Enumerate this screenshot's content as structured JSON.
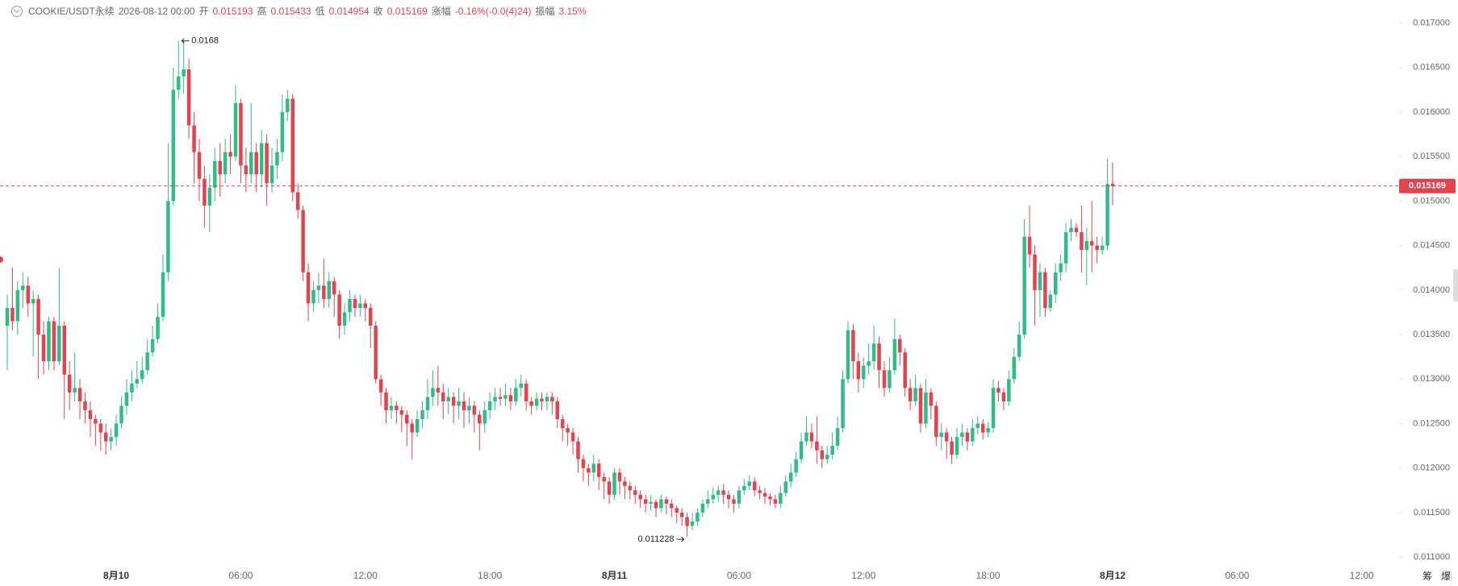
{
  "chart_data": {
    "type": "candlestick",
    "header": {
      "symbol": "COOKIE/USDT永续",
      "datetime": "2026-08-12 00:00",
      "open_label": "开",
      "high_label": "高",
      "low_label": "低",
      "close_label": "收",
      "change_label": "涨幅",
      "change": "-0.16%(-0.0(4)24)",
      "amplitude_label": "振幅",
      "amplitude": "3.15%"
    },
    "tools": [
      "筹",
      "爆"
    ],
    "up_color": "#2ebd85",
    "down_color": "#e2434f",
    "xlim": [
      -5.6,
      61.8
    ],
    "xticks": [
      {
        "value": 0,
        "label": "8月10"
      },
      {
        "value": 6,
        "label": "06:00"
      },
      {
        "value": 12,
        "label": "12:00"
      },
      {
        "value": 18,
        "label": "18:00"
      },
      {
        "value": 24,
        "label": "8月11"
      },
      {
        "value": 30,
        "label": "06:00"
      },
      {
        "value": 36,
        "label": "12:00"
      },
      {
        "value": 42,
        "label": "18:00"
      },
      {
        "value": 48,
        "label": "8月12"
      },
      {
        "value": 54,
        "label": "06:00"
      },
      {
        "value": 60,
        "label": "12:00"
      }
    ],
    "ylim": [
      0.01092,
      0.01725
    ],
    "yticks": [
      {
        "value": 0.011,
        "label": "0.011000"
      },
      {
        "value": 0.0115,
        "label": "0.011500"
      },
      {
        "value": 0.012,
        "label": "0.012000"
      },
      {
        "value": 0.0125,
        "label": "0.012500"
      },
      {
        "value": 0.013,
        "label": "0.013000"
      },
      {
        "value": 0.0135,
        "label": "0.013500"
      },
      {
        "value": 0.014,
        "label": "0.014000"
      },
      {
        "value": 0.0145,
        "label": "0.014500"
      },
      {
        "value": 0.015,
        "label": "0.015000"
      },
      {
        "value": 0.0155,
        "label": "0.015500"
      },
      {
        "value": 0.016,
        "label": "0.016000"
      },
      {
        "value": 0.0165,
        "label": "0.016500"
      },
      {
        "value": 0.017,
        "label": "0.017000"
      }
    ],
    "grid": false,
    "x": [
      -5.25,
      -5,
      -4.75,
      -4.5,
      -4.25,
      -4,
      -3.75,
      -3.5,
      -3.25,
      -3,
      -2.75,
      -2.5,
      -2.25,
      -2,
      -1.75,
      -1.5,
      -1.25,
      -1,
      -0.75,
      -0.5,
      -0.25,
      0,
      0.25,
      0.5,
      0.75,
      1,
      1.25,
      1.5,
      1.75,
      2,
      2.25,
      2.5,
      2.75,
      3,
      3.25,
      3.5,
      3.75,
      4,
      4.25,
      4.5,
      4.75,
      5,
      5.25,
      5.5,
      5.75,
      6,
      6.25,
      6.5,
      6.75,
      7,
      7.25,
      7.5,
      7.75,
      8,
      8.25,
      8.5,
      8.75,
      9,
      9.25,
      9.5,
      9.75,
      10,
      10.25,
      10.5,
      10.75,
      11,
      11.25,
      11.5,
      11.75,
      12,
      12.25,
      12.5,
      12.75,
      13,
      13.25,
      13.5,
      13.75,
      14,
      14.25,
      14.5,
      14.75,
      15,
      15.25,
      15.5,
      15.75,
      16,
      16.25,
      16.5,
      16.75,
      17,
      17.25,
      17.5,
      17.75,
      18,
      18.25,
      18.5,
      18.75,
      19,
      19.25,
      19.5,
      19.75,
      20,
      20.25,
      20.5,
      20.75,
      21,
      21.25,
      21.5,
      21.75,
      22,
      22.25,
      22.5,
      22.75,
      23,
      23.25,
      23.5,
      23.75,
      24,
      24.25,
      24.5,
      24.75,
      25,
      25.25,
      25.5,
      25.75,
      26,
      26.25,
      26.5,
      26.75,
      27,
      27.25,
      27.5,
      27.75,
      28,
      28.25,
      28.5,
      28.75,
      29,
      29.25,
      29.5,
      29.75,
      30,
      30.25,
      30.5,
      30.75,
      31,
      31.25,
      31.5,
      31.75,
      32,
      32.25,
      32.5,
      32.75,
      33,
      33.25,
      33.5,
      33.75,
      34,
      34.25,
      34.5,
      34.75,
      35,
      35.25,
      35.5,
      35.75,
      36,
      36.25,
      36.5,
      36.75,
      37,
      37.25,
      37.5,
      37.75,
      38,
      38.25,
      38.5,
      38.75,
      39,
      39.25,
      39.5,
      39.75,
      40,
      40.25,
      40.5,
      40.75,
      41,
      41.25,
      41.5,
      41.75,
      42,
      42.25,
      42.5,
      42.75,
      43,
      43.25,
      43.5,
      43.75,
      44,
      44.25,
      44.5,
      44.75,
      45,
      45.25,
      45.5,
      45.75,
      46,
      46.25,
      46.5,
      46.75,
      47,
      47.25,
      47.5,
      47.75,
      48
    ],
    "open": [
      0.0136,
      0.0138,
      0.01365,
      0.014,
      0.01405,
      0.01385,
      0.0139,
      0.0135,
      0.0132,
      0.01365,
      0.0132,
      0.0136,
      0.01305,
      0.01285,
      0.0129,
      0.01275,
      0.01265,
      0.01255,
      0.0125,
      0.0124,
      0.0123,
      0.01235,
      0.0125,
      0.0127,
      0.01285,
      0.01295,
      0.013,
      0.0131,
      0.0133,
      0.01345,
      0.0137,
      0.0142,
      0.015,
      0.01625,
      0.0164,
      0.01648,
      0.01585,
      0.01555,
      0.01525,
      0.01495,
      0.01515,
      0.01545,
      0.0153,
      0.01555,
      0.0155,
      0.0161,
      0.0154,
      0.0153,
      0.01555,
      0.0153,
      0.01565,
      0.0152,
      0.0154,
      0.01555,
      0.016,
      0.01615,
      0.0151,
      0.0149,
      0.0142,
      0.01385,
      0.014,
      0.01405,
      0.0139,
      0.0141,
      0.01395,
      0.0136,
      0.01375,
      0.0139,
      0.0138,
      0.01385,
      0.0138,
      0.0136,
      0.013,
      0.01285,
      0.01265,
      0.0127,
      0.01265,
      0.0126,
      0.0125,
      0.0124,
      0.01255,
      0.01265,
      0.0128,
      0.0129,
      0.01285,
      0.01275,
      0.0128,
      0.0127,
      0.01275,
      0.01265,
      0.0127,
      0.0126,
      0.0125,
      0.01265,
      0.01275,
      0.0128,
      0.01278,
      0.01282,
      0.01275,
      0.0129,
      0.01295,
      0.01275,
      0.0127,
      0.01278,
      0.01275,
      0.0128,
      0.01275,
      0.01255,
      0.01245,
      0.0124,
      0.0123,
      0.0121,
      0.012,
      0.01195,
      0.01205,
      0.0119,
      0.01185,
      0.0117,
      0.01195,
      0.01185,
      0.0118,
      0.01175,
      0.0117,
      0.01165,
      0.0116,
      0.01162,
      0.01155,
      0.01165,
      0.0116,
      0.01155,
      0.0115,
      0.01145,
      0.01135,
      0.0114,
      0.0115,
      0.0116,
      0.01165,
      0.0117,
      0.01175,
      0.0117,
      0.01165,
      0.0116,
      0.01175,
      0.0118,
      0.01185,
      0.01175,
      0.01172,
      0.01168,
      0.01165,
      0.0116,
      0.01172,
      0.01185,
      0.01195,
      0.0121,
      0.0123,
      0.0124,
      0.0123,
      0.0122,
      0.0121,
      0.01215,
      0.01225,
      0.01245,
      0.013,
      0.01355,
      0.0132,
      0.013,
      0.01315,
      0.0132,
      0.0134,
      0.0131,
      0.0129,
      0.0131,
      0.01345,
      0.0133,
      0.0129,
      0.01275,
      0.0129,
      0.0125,
      0.01285,
      0.0127,
      0.01235,
      0.0124,
      0.0123,
      0.01215,
      0.01235,
      0.0124,
      0.0123,
      0.01245,
      0.0125,
      0.0124,
      0.01245,
      0.0129,
      0.01285,
      0.01275,
      0.013,
      0.01325,
      0.0135,
      0.0146,
      0.0144,
      0.014,
      0.0142,
      0.0138,
      0.01395,
      0.0142,
      0.0143,
      0.01465,
      0.0147,
      0.01465,
      0.01445,
      0.01455,
      0.0145,
      0.01445,
      0.0145,
      0.015193
    ],
    "high": [
      0.01395,
      0.01425,
      0.0141,
      0.0142,
      0.01415,
      0.014,
      0.01395,
      0.01365,
      0.0137,
      0.0137,
      0.01425,
      0.01365,
      0.0132,
      0.0133,
      0.013,
      0.01285,
      0.01275,
      0.0126,
      0.01255,
      0.0125,
      0.01245,
      0.0126,
      0.0128,
      0.013,
      0.0131,
      0.0132,
      0.01325,
      0.01345,
      0.0136,
      0.01385,
      0.0144,
      0.01565,
      0.0165,
      0.0168,
      0.016799,
      0.0166,
      0.016,
      0.0157,
      0.0154,
      0.0153,
      0.0156,
      0.01565,
      0.0157,
      0.01575,
      0.0163,
      0.01615,
      0.0156,
      0.0161,
      0.01565,
      0.0158,
      0.01575,
      0.0156,
      0.0157,
      0.0162,
      0.01625,
      0.0162,
      0.0152,
      0.01495,
      0.0143,
      0.0141,
      0.0142,
      0.01435,
      0.0142,
      0.01415,
      0.014,
      0.01385,
      0.014,
      0.01395,
      0.01395,
      0.0139,
      0.01385,
      0.01365,
      0.01305,
      0.0129,
      0.0128,
      0.01275,
      0.0127,
      0.01265,
      0.01255,
      0.01265,
      0.01275,
      0.013,
      0.0131,
      0.01315,
      0.01295,
      0.0129,
      0.01285,
      0.0129,
      0.01285,
      0.0128,
      0.01275,
      0.01265,
      0.01275,
      0.01285,
      0.0129,
      0.0129,
      0.01295,
      0.0129,
      0.013,
      0.01305,
      0.013,
      0.0128,
      0.01285,
      0.01285,
      0.01285,
      0.01285,
      0.0128,
      0.0126,
      0.0125,
      0.01245,
      0.01235,
      0.01215,
      0.01205,
      0.01215,
      0.0121,
      0.01195,
      0.0119,
      0.012,
      0.012,
      0.0119,
      0.01185,
      0.0118,
      0.01175,
      0.0117,
      0.0117,
      0.01165,
      0.0117,
      0.01168,
      0.01165,
      0.01158,
      0.01155,
      0.0115,
      0.0115,
      0.01155,
      0.01165,
      0.01175,
      0.01178,
      0.0118,
      0.01182,
      0.01175,
      0.0117,
      0.0118,
      0.01188,
      0.01192,
      0.0119,
      0.0118,
      0.01178,
      0.01172,
      0.0117,
      0.0118,
      0.01192,
      0.01205,
      0.01218,
      0.0124,
      0.01258,
      0.0125,
      0.01258,
      0.01225,
      0.01225,
      0.0124,
      0.01258,
      0.0131,
      0.01365,
      0.01362,
      0.0133,
      0.01325,
      0.0134,
      0.0136,
      0.01348,
      0.0132,
      0.01325,
      0.01368,
      0.0135,
      0.01335,
      0.013,
      0.01305,
      0.01295,
      0.013,
      0.0129,
      0.01275,
      0.0125,
      0.01245,
      0.01235,
      0.01245,
      0.0125,
      0.01245,
      0.01255,
      0.01258,
      0.01255,
      0.01252,
      0.013,
      0.01298,
      0.0129,
      0.0131,
      0.01335,
      0.01365,
      0.0148,
      0.01495,
      0.0145,
      0.0143,
      0.01425,
      0.014,
      0.0143,
      0.0144,
      0.01475,
      0.0148,
      0.01475,
      0.01495,
      0.0147,
      0.015,
      0.0146,
      0.0146,
      0.015475,
      0.015433
    ],
    "low": [
      0.0131,
      0.01355,
      0.0135,
      0.0138,
      0.0137,
      0.01325,
      0.013,
      0.01305,
      0.0131,
      0.0131,
      0.01315,
      0.01255,
      0.01265,
      0.01275,
      0.01255,
      0.0125,
      0.01235,
      0.01225,
      0.0122,
      0.01215,
      0.0122,
      0.01225,
      0.01245,
      0.0126,
      0.01275,
      0.0129,
      0.01295,
      0.01305,
      0.01325,
      0.0134,
      0.01365,
      0.0141,
      0.01495,
      0.01615,
      0.0162,
      0.0157,
      0.0152,
      0.015,
      0.0147,
      0.01465,
      0.015,
      0.01505,
      0.0152,
      0.0153,
      0.01545,
      0.0152,
      0.0151,
      0.0152,
      0.0151,
      0.01515,
      0.01495,
      0.0151,
      0.01525,
      0.01545,
      0.0159,
      0.015,
      0.0148,
      0.0141,
      0.01365,
      0.01375,
      0.01385,
      0.0138,
      0.0138,
      0.0137,
      0.01345,
      0.0135,
      0.01365,
      0.0137,
      0.0137,
      0.01365,
      0.01335,
      0.01295,
      0.0127,
      0.0125,
      0.01255,
      0.0125,
      0.0124,
      0.01225,
      0.0121,
      0.01235,
      0.01245,
      0.01255,
      0.0127,
      0.0127,
      0.01255,
      0.0126,
      0.0125,
      0.01255,
      0.01245,
      0.0125,
      0.0124,
      0.0122,
      0.0124,
      0.01255,
      0.01265,
      0.0127,
      0.0127,
      0.01265,
      0.0127,
      0.0128,
      0.01265,
      0.0126,
      0.01265,
      0.01265,
      0.01265,
      0.0126,
      0.01245,
      0.0123,
      0.01225,
      0.01215,
      0.01195,
      0.01185,
      0.0118,
      0.01185,
      0.01175,
      0.01165,
      0.0116,
      0.01165,
      0.0117,
      0.01165,
      0.01165,
      0.0116,
      0.01155,
      0.0115,
      0.01152,
      0.01145,
      0.0115,
      0.01148,
      0.01145,
      0.01138,
      0.01135,
      0.011228,
      0.0113,
      0.01135,
      0.01145,
      0.01155,
      0.0116,
      0.01162,
      0.0116,
      0.01155,
      0.0115,
      0.01155,
      0.0117,
      0.01175,
      0.01168,
      0.01165,
      0.0116,
      0.01158,
      0.01155,
      0.01155,
      0.01168,
      0.01178,
      0.0119,
      0.01205,
      0.01225,
      0.01222,
      0.01205,
      0.012,
      0.01205,
      0.0121,
      0.0122,
      0.0124,
      0.01295,
      0.013,
      0.01285,
      0.0129,
      0.01305,
      0.0131,
      0.0129,
      0.0128,
      0.01285,
      0.01305,
      0.01315,
      0.0128,
      0.01265,
      0.0127,
      0.0124,
      0.01245,
      0.01255,
      0.01225,
      0.0122,
      0.0121,
      0.01205,
      0.0121,
      0.01225,
      0.0122,
      0.01225,
      0.01238,
      0.01232,
      0.01235,
      0.0124,
      0.01275,
      0.01265,
      0.0127,
      0.01295,
      0.0132,
      0.01345,
      0.01425,
      0.0136,
      0.0137,
      0.0137,
      0.01375,
      0.01385,
      0.0141,
      0.0142,
      0.01455,
      0.0146,
      0.0142,
      0.01405,
      0.0142,
      0.0143,
      0.0144,
      0.01445,
      0.014954
    ],
    "close": [
      0.0138,
      0.01365,
      0.014,
      0.01405,
      0.01385,
      0.0139,
      0.0135,
      0.0132,
      0.01365,
      0.0132,
      0.0136,
      0.01305,
      0.01285,
      0.0129,
      0.01275,
      0.01265,
      0.01255,
      0.0125,
      0.0124,
      0.0123,
      0.01235,
      0.0125,
      0.0127,
      0.01285,
      0.01295,
      0.013,
      0.0131,
      0.0133,
      0.01345,
      0.0137,
      0.0142,
      0.015,
      0.01625,
      0.0164,
      0.01648,
      0.01585,
      0.01555,
      0.01525,
      0.01495,
      0.01515,
      0.01545,
      0.0153,
      0.01555,
      0.0155,
      0.0161,
      0.0154,
      0.0153,
      0.01555,
      0.0153,
      0.01565,
      0.0152,
      0.0154,
      0.01555,
      0.016,
      0.01615,
      0.0151,
      0.0149,
      0.0142,
      0.01385,
      0.014,
      0.01405,
      0.0139,
      0.0141,
      0.01395,
      0.0136,
      0.01375,
      0.0139,
      0.0138,
      0.01385,
      0.0138,
      0.0136,
      0.013,
      0.01285,
      0.01265,
      0.0127,
      0.01265,
      0.0126,
      0.0125,
      0.0124,
      0.01255,
      0.01265,
      0.0128,
      0.0129,
      0.01285,
      0.01275,
      0.0128,
      0.0127,
      0.01275,
      0.01265,
      0.0127,
      0.0126,
      0.0125,
      0.01265,
      0.01275,
      0.0128,
      0.01278,
      0.01282,
      0.01275,
      0.0129,
      0.01295,
      0.01275,
      0.0127,
      0.01278,
      0.01275,
      0.0128,
      0.01275,
      0.01255,
      0.01245,
      0.0124,
      0.0123,
      0.0121,
      0.012,
      0.01195,
      0.01205,
      0.0119,
      0.01185,
      0.0117,
      0.01195,
      0.01185,
      0.0118,
      0.01175,
      0.0117,
      0.01165,
      0.0116,
      0.01162,
      0.01155,
      0.01165,
      0.0116,
      0.01155,
      0.0115,
      0.01145,
      0.01135,
      0.0114,
      0.0115,
      0.0116,
      0.01165,
      0.0117,
      0.01175,
      0.0117,
      0.01165,
      0.0116,
      0.01175,
      0.0118,
      0.01185,
      0.01175,
      0.01172,
      0.01168,
      0.01165,
      0.0116,
      0.01172,
      0.01185,
      0.01195,
      0.0121,
      0.0123,
      0.0124,
      0.0123,
      0.0122,
      0.0121,
      0.01215,
      0.01225,
      0.01245,
      0.013,
      0.01355,
      0.0132,
      0.013,
      0.01315,
      0.0132,
      0.0134,
      0.0131,
      0.0129,
      0.0131,
      0.01345,
      0.0133,
      0.0129,
      0.01275,
      0.0129,
      0.0125,
      0.01285,
      0.0127,
      0.01235,
      0.0124,
      0.0123,
      0.01215,
      0.01235,
      0.0124,
      0.0123,
      0.01245,
      0.0125,
      0.0124,
      0.01245,
      0.0129,
      0.01285,
      0.01275,
      0.013,
      0.01325,
      0.0135,
      0.0146,
      0.0144,
      0.014,
      0.0142,
      0.0138,
      0.01395,
      0.0142,
      0.0143,
      0.01465,
      0.0147,
      0.01465,
      0.01445,
      0.01455,
      0.0145,
      0.01445,
      0.0145,
      0.015193,
      0.015169
    ]
  }
}
